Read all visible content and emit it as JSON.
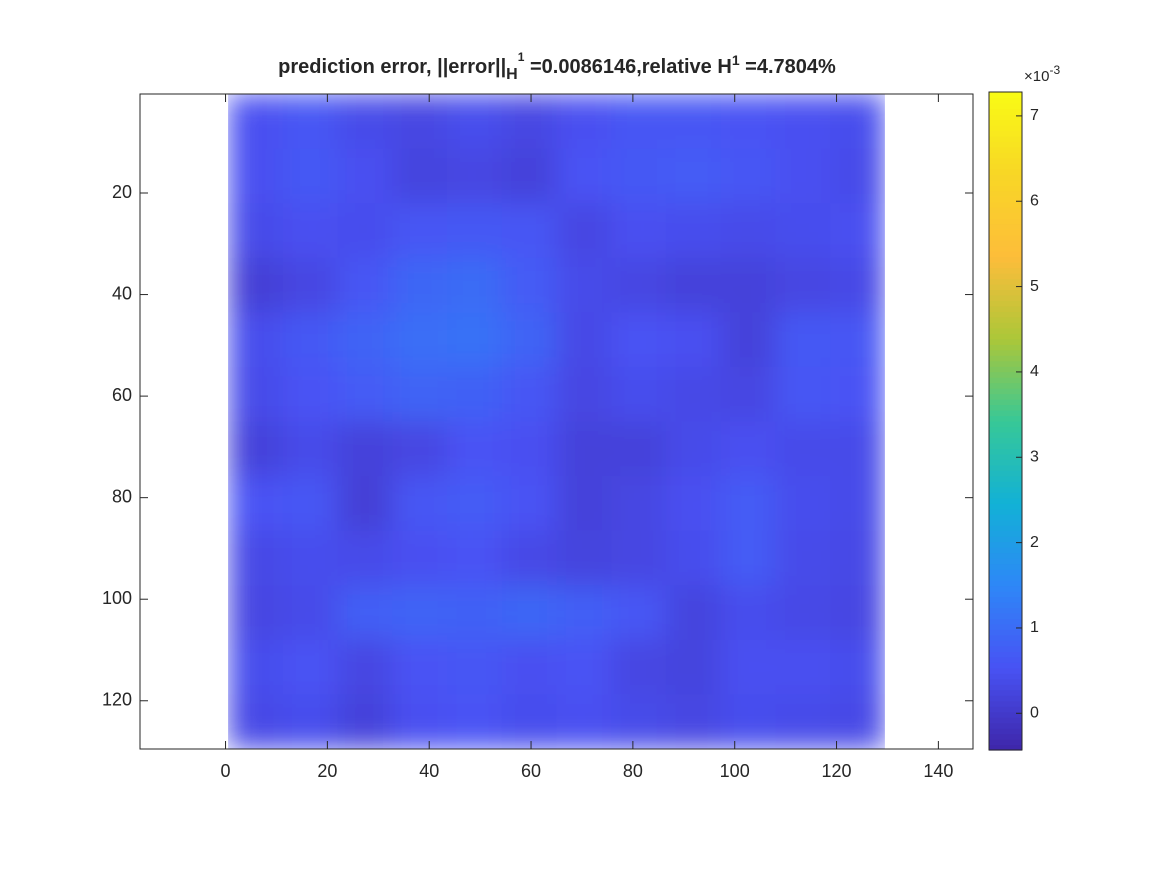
{
  "chart_data": {
    "type": "heatmap",
    "title": [
      {
        "text": "prediction error, ||error||",
        "style": "normal"
      },
      {
        "text": "H",
        "style": "sub"
      },
      {
        "text": "1",
        "style": "subsup"
      },
      {
        "text": " =0.0086146,relative H",
        "style": "normal"
      },
      {
        "text": "1",
        "style": "sup"
      },
      {
        "text": " =4.7804%",
        "style": "normal"
      }
    ],
    "xextent": [
      0.5,
      129.5
    ],
    "yextent": [
      0.5,
      129.5
    ],
    "xlim": [
      -16.8,
      146.8
    ],
    "ylim": [
      0.5,
      129.5
    ],
    "yreversed": true,
    "xticks": [
      0,
      20,
      40,
      60,
      80,
      100,
      120,
      140
    ],
    "yticks": [
      20,
      40,
      60,
      80,
      100,
      120
    ],
    "z": [
      [
        0.5,
        0.6,
        0.4,
        0.3,
        0.45,
        0.3,
        0.5,
        0.6,
        0.6,
        0.55,
        0.5,
        0.45
      ],
      [
        0.5,
        0.65,
        0.5,
        0.25,
        0.3,
        0.2,
        0.55,
        0.65,
        0.7,
        0.6,
        0.5,
        0.4
      ],
      [
        0.4,
        0.5,
        0.45,
        0.6,
        0.65,
        0.6,
        0.3,
        0.5,
        0.45,
        0.4,
        0.45,
        0.5
      ],
      [
        0.15,
        0.3,
        0.6,
        0.9,
        1.0,
        0.7,
        0.4,
        0.3,
        0.2,
        0.2,
        0.3,
        0.35
      ],
      [
        0.45,
        0.65,
        0.85,
        1.05,
        1.1,
        0.85,
        0.35,
        0.55,
        0.5,
        0.2,
        0.65,
        0.6
      ],
      [
        0.4,
        0.55,
        0.7,
        0.85,
        0.8,
        0.6,
        0.3,
        0.45,
        0.35,
        0.3,
        0.6,
        0.55
      ],
      [
        0.2,
        0.4,
        0.2,
        0.3,
        0.55,
        0.5,
        0.2,
        0.2,
        0.4,
        0.5,
        0.4,
        0.4
      ],
      [
        0.55,
        0.6,
        0.15,
        0.6,
        0.7,
        0.55,
        0.2,
        0.3,
        0.5,
        0.7,
        0.45,
        0.4
      ],
      [
        0.35,
        0.45,
        0.4,
        0.5,
        0.55,
        0.35,
        0.25,
        0.3,
        0.45,
        0.7,
        0.4,
        0.35
      ],
      [
        0.3,
        0.4,
        0.75,
        0.85,
        0.8,
        0.9,
        0.75,
        0.6,
        0.25,
        0.45,
        0.35,
        0.3
      ],
      [
        0.45,
        0.55,
        0.3,
        0.55,
        0.6,
        0.5,
        0.55,
        0.3,
        0.25,
        0.5,
        0.5,
        0.45
      ],
      [
        0.35,
        0.45,
        0.2,
        0.5,
        0.55,
        0.45,
        0.5,
        0.4,
        0.3,
        0.45,
        0.4,
        0.35
      ]
    ],
    "clim": [
      -0.43,
      7.28
    ],
    "cticks": [
      0,
      1,
      2,
      3,
      4,
      5,
      6,
      7
    ],
    "cmultiplier": {
      "base": "×10",
      "exponent": "-3"
    },
    "colormap": [
      "#3e26a8",
      "#4852f4",
      "#2e87f7",
      "#12b1d6",
      "#37c897",
      "#abc739",
      "#fdbd3a",
      "#f8d626",
      "#f9fb15"
    ]
  }
}
